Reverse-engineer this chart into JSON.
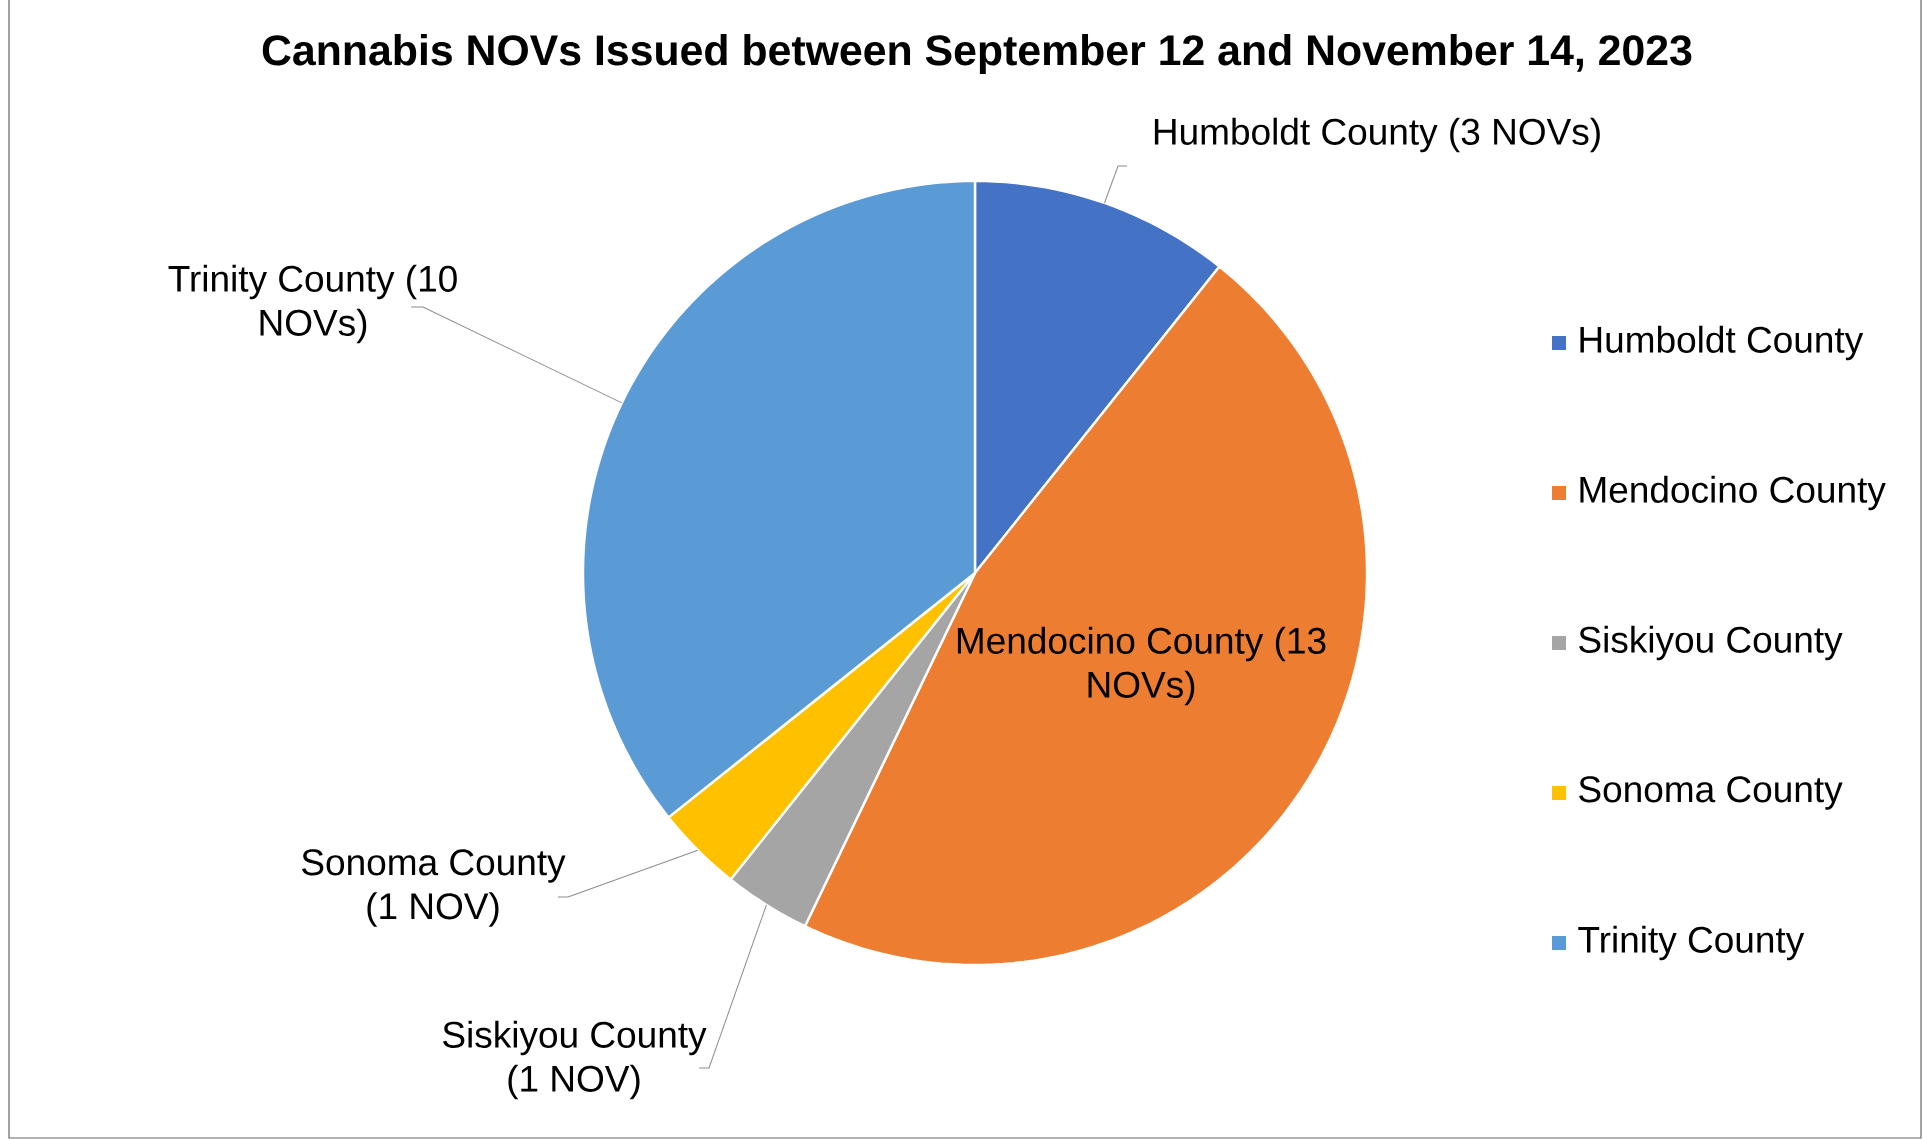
{
  "chart_data": {
    "type": "pie",
    "title": "Cannabis NOVs Issued between September 12 and November 14, 2023",
    "categories": [
      "Humboldt County",
      "Mendocino County",
      "Siskiyou County",
      "Sonoma County",
      "Trinity County"
    ],
    "values": [
      3,
      13,
      1,
      1,
      10
    ],
    "colors": [
      "#4472c4",
      "#ed7d31",
      "#a5a5a5",
      "#ffc000",
      "#5b9bd5"
    ],
    "value_labels": [
      "Humboldt County (3 NOVs)",
      "Mendocino County (13 NOVs)",
      "Siskiyou County (1 NOV)",
      "Sonoma County (1 NOV)",
      "Trinity County (10 NOVs)"
    ],
    "legend": "right"
  }
}
